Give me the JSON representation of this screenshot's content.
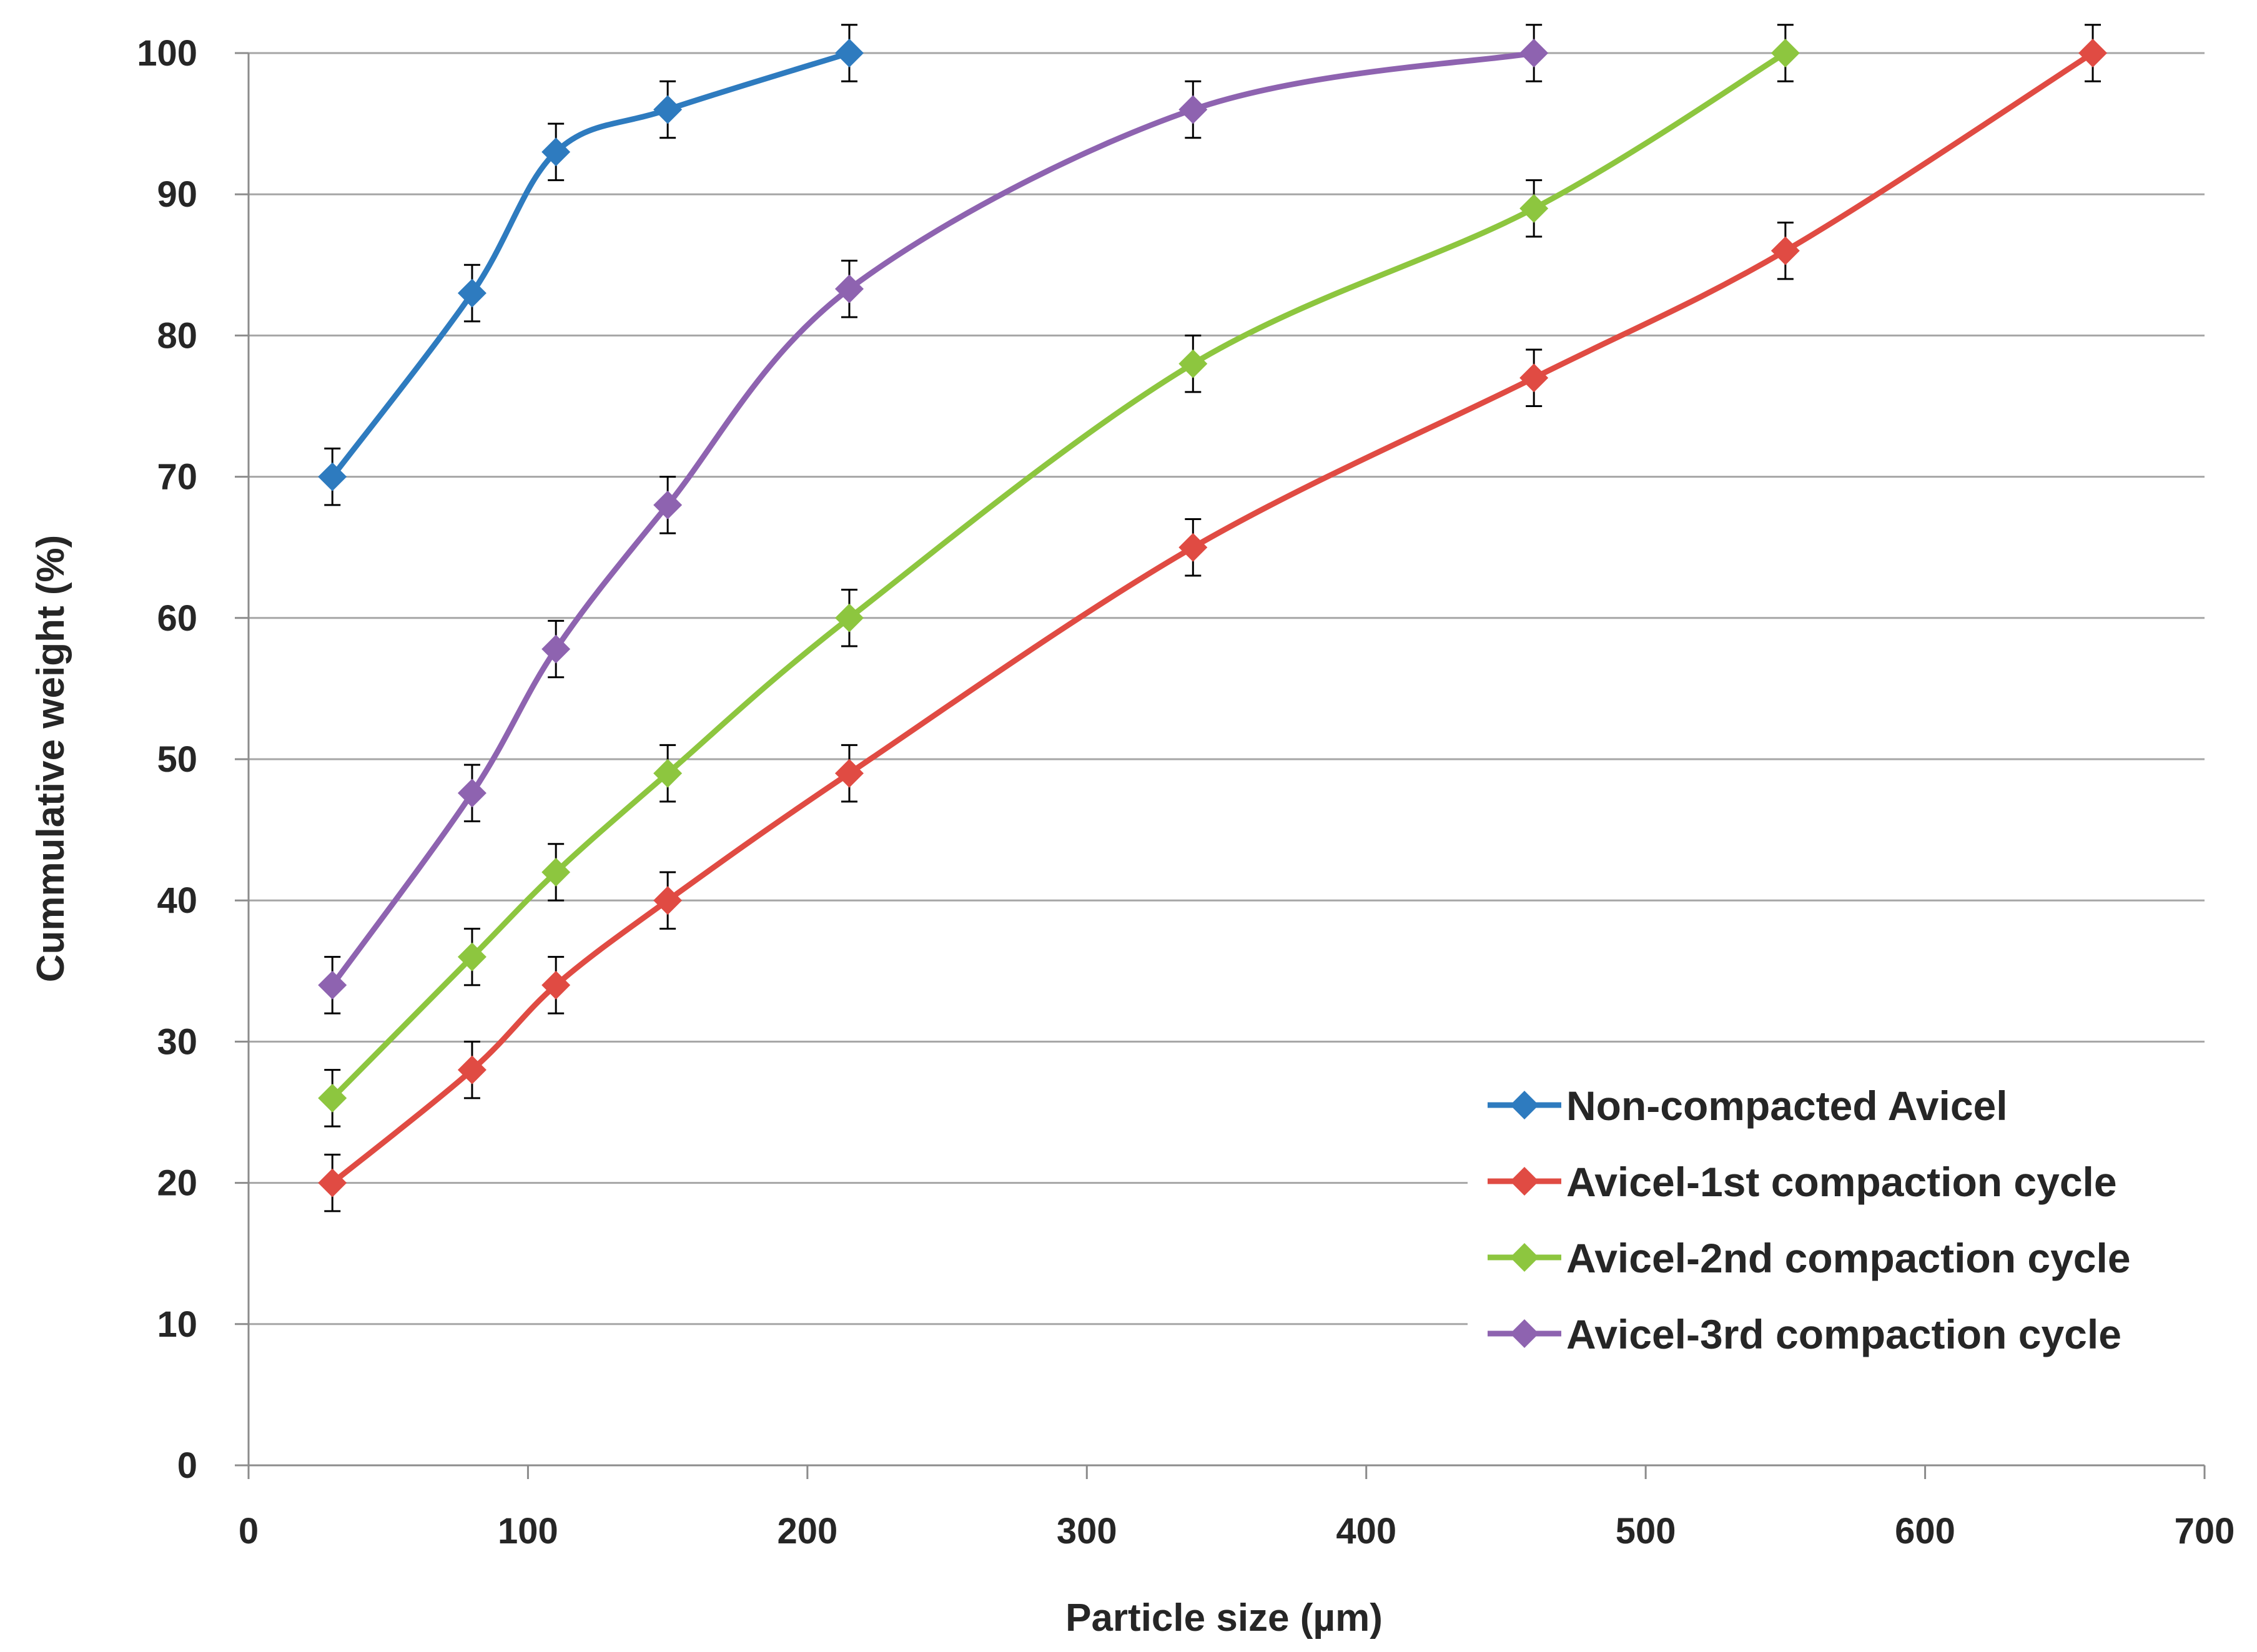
{
  "chart_data": {
    "type": "line",
    "title": "",
    "xlabel": "Particle size (µm)",
    "ylabel": "Cummulative weight (%)",
    "xlim": [
      0,
      700
    ],
    "ylim": [
      0,
      100
    ],
    "x_ticks": [
      "0",
      "100",
      "200",
      "300",
      "400",
      "500",
      "600",
      "700"
    ],
    "y_ticks": [
      "0",
      "10",
      "20",
      "30",
      "40",
      "50",
      "60",
      "70",
      "80",
      "90",
      "100"
    ],
    "grid": "horizontal",
    "legend_position": "bottom-right",
    "error_bar": 2,
    "series": [
      {
        "name": "Non-compacted Avicel",
        "color": "#2E7BBF",
        "x": [
          30,
          80,
          110,
          150,
          215
        ],
        "y": [
          70,
          83,
          93,
          96,
          100
        ]
      },
      {
        "name": "Avicel-1st compaction cycle",
        "color": "#E04B43",
        "x": [
          30,
          80,
          110,
          150,
          215,
          338,
          460,
          550,
          660
        ],
        "y": [
          20,
          28,
          34,
          40,
          49,
          65,
          77,
          86,
          100
        ]
      },
      {
        "name": "Avicel-2nd compaction cycle",
        "color": "#8DC63F",
        "x": [
          30,
          80,
          110,
          150,
          215,
          338,
          460,
          550
        ],
        "y": [
          26,
          36,
          42,
          49,
          60,
          78,
          89,
          100
        ]
      },
      {
        "name": "Avicel-3rd compaction cycle",
        "color": "#8E63B0",
        "x": [
          30,
          80,
          110,
          150,
          215,
          338,
          460
        ],
        "y": [
          34,
          47.6,
          57.8,
          68,
          83.3,
          96,
          100
        ]
      }
    ]
  }
}
